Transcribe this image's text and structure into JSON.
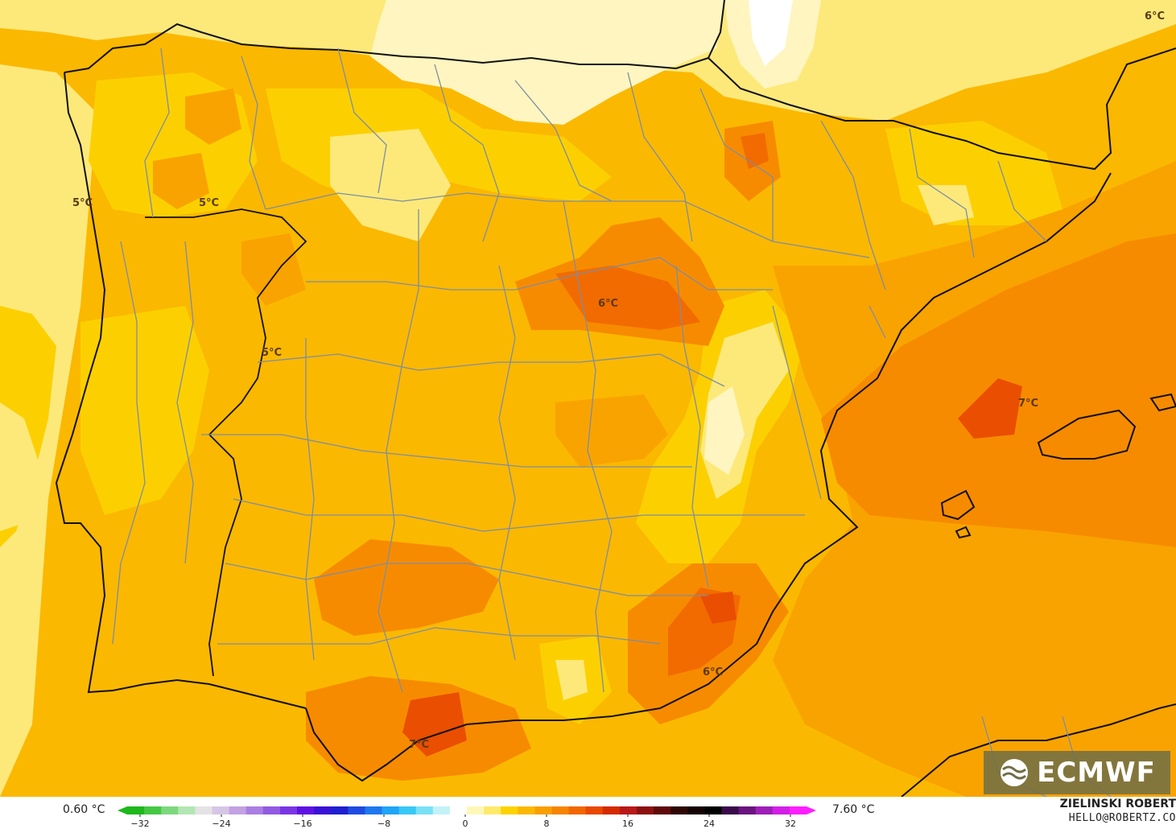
{
  "map": {
    "region": "Iberian Peninsula",
    "field": "temperature",
    "temperature_labels": [
      "6°C",
      "5°C",
      "5°C",
      "6°C",
      "5°C",
      "7°C",
      "6°C",
      "7°C",
      "5°C"
    ],
    "colors": {
      "pale": "#fff5c0",
      "light_yellow": "#fde97a",
      "yellow": "#fcd000",
      "gold": "#fbb800",
      "orange_light": "#f9a300",
      "orange": "#f78b00",
      "orange_deep": "#f26b00",
      "red_orange": "#ea4e00",
      "land_border": "#111111",
      "province_border": "#7d8ea0"
    }
  },
  "logo": {
    "text": "ECMWF",
    "icon": "ecmwf-wave-icon"
  },
  "scale": {
    "min_label": "0.60 °C",
    "max_label": "7.60 °C",
    "ticks": [
      "−32",
      "−24",
      "−16",
      "−8",
      "0",
      "8",
      "16",
      "24",
      "32"
    ],
    "colors": [
      "#1cb81c",
      "#44c844",
      "#7dd87d",
      "#b2e6b2",
      "#e3e3e3",
      "#d6c6e6",
      "#c2a2e2",
      "#aa7ee2",
      "#925ae2",
      "#7a36e2",
      "#5e12e2",
      "#3a12d6",
      "#1f1fd0",
      "#1f4be0",
      "#1f77ee",
      "#1fa5f6",
      "#38c8f6",
      "#7ae0f6",
      "#c2f2f6",
      "#ffffff",
      "#fff7b8",
      "#feea6a",
      "#fdd200",
      "#fbb800",
      "#f9a000",
      "#f78400",
      "#f26600",
      "#e84800",
      "#d42a00",
      "#b81818",
      "#8c1010",
      "#5e0a0a",
      "#2e0606",
      "#150303",
      "#000000",
      "#3a0a4a",
      "#6a1480",
      "#9e1eb8",
      "#d21ee6",
      "#ff1eff"
    ]
  },
  "credits": {
    "author": "ZIELINSKI ROBERT",
    "email": "HELLO@ROBERTZ.CO"
  }
}
